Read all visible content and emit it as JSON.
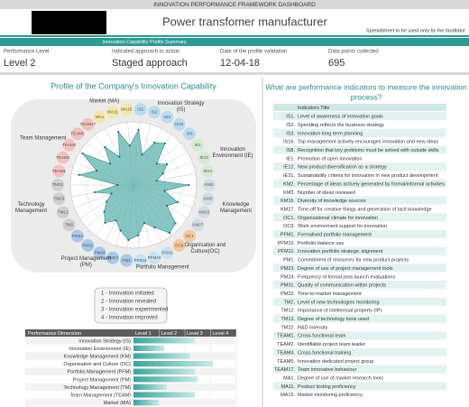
{
  "header": {
    "title": "INNOVATION PERFORMANCE FRAMEWORK DASHBOARD",
    "company": "Power transfomer manufacturer",
    "note": "Spreadsheet to be used only by the facilitator",
    "summary_title": "Innovation Capability Profile Summary"
  },
  "summary": [
    {
      "label": "Performance Level",
      "value": "Level 2"
    },
    {
      "label": "Indicated approach to action",
      "value": "Staged approach"
    },
    {
      "label": "Date of the profile validation",
      "value": "12-04-18"
    },
    {
      "label": "Data points collected",
      "value": "695"
    }
  ],
  "chart_data": [
    {
      "type": "radar",
      "title": "Profile of the Company's Innovation Capability",
      "color": "#5fb3ad",
      "rlim": [
        0,
        4
      ],
      "rticks": [
        {
          "value": 1,
          "label": "1 - Innovation initiated"
        },
        {
          "value": 2,
          "label": "2 - Innovation revealed"
        },
        {
          "value": 3,
          "label": "3 - Innovation experimented"
        },
        {
          "value": 4,
          "label": "4 - Innovation improved"
        }
      ],
      "groups": [
        {
          "name": "Innovation Strategy (IS)",
          "color": "#b9dcef",
          "categories": [
            "IS1",
            "IS2",
            "IS3",
            "IS16",
            "IS8"
          ],
          "values": [
            3.5,
            2,
            3,
            3.3,
            2
          ]
        },
        {
          "name": "Innovation Environment (IE)",
          "color": "#d6ead0",
          "categories": [
            "IE1",
            "IE12",
            "IE21"
          ],
          "values": [
            2.5,
            2,
            1.5
          ]
        },
        {
          "name": "Knowledge Management",
          "color": "#d3dde6",
          "categories": [
            "KM2",
            "KM3",
            "KM16",
            "KM27"
          ],
          "values": [
            3.5,
            2,
            3,
            2.5
          ]
        },
        {
          "name": "Organisation and Culture(OC)",
          "color": "#f7c89a",
          "categories": [
            "OC1",
            "OC9"
          ],
          "values": [
            3.6,
            3.8
          ]
        },
        {
          "name": "Portfolio Management",
          "color": "#c5e3f2",
          "categories": [
            "PFM1",
            "PFM10",
            "PFM11"
          ],
          "values": [
            3,
            2.5,
            3.2
          ]
        },
        {
          "name": "Project Management (PM)",
          "color": "#a9c9ea",
          "categories": [
            "PM1",
            "PM23",
            "PM24",
            "PM31",
            "PM32"
          ],
          "values": [
            3.5,
            3,
            2.5,
            3,
            2.5
          ]
        },
        {
          "name": "Technology Management",
          "color": "#d0d0d0",
          "categories": [
            "TM2",
            "TM12",
            "TM13",
            "TM22"
          ],
          "values": [
            2,
            1.5,
            2.5,
            1
          ]
        },
        {
          "name": "Team Management",
          "color": "#f4c0c0",
          "categories": [
            "TEAM1",
            "TEAM2",
            "TEAM4",
            "TEAM5",
            "TEAM17"
          ],
          "values": [
            3.5,
            2.5,
            3.8,
            2,
            3
          ]
        },
        {
          "name": "Market (MA)",
          "color": "#f6e7a6",
          "categories": [
            "MA1",
            "MA11",
            "MA15"
          ],
          "values": [
            2,
            3.5,
            2.5
          ]
        }
      ]
    },
    {
      "type": "bar",
      "orientation": "horizontal",
      "category_label": "Performance Dimension",
      "color": "#3aa39a",
      "categories": [
        "Innovation Strategy (IS)",
        "Innovation Environment (IE)",
        "Knowledge Management (KM)",
        "Organisation and Culture (OC)",
        "Portfolio Management (PFM)",
        "Project Management (PM)",
        "Technology Management (TM)",
        "Team Management (TEAM)",
        "Market (MA)"
      ],
      "values": [
        2.4,
        1.2,
        2.2,
        3.1,
        2.4,
        2.5,
        1.3,
        2.4,
        1.0
      ],
      "xlim": [
        0,
        4
      ],
      "xticks": [
        {
          "value": 1,
          "label": "Level 1"
        },
        {
          "value": 2,
          "label": "Level 2"
        },
        {
          "value": 3,
          "label": "Level 3"
        },
        {
          "value": 4,
          "label": "Level 4"
        }
      ]
    }
  ],
  "indicators": {
    "question": [
      "What are performance indicators to measure the innovation",
      "process?"
    ],
    "header": "Indicators Title",
    "rows": [
      {
        "code": "IS1.",
        "title": "Level of awareness of innovation goals"
      },
      {
        "code": "IS2.",
        "title": "Spending reflects the business strategy"
      },
      {
        "code": "IS3.",
        "title": "Innovation long term planning"
      },
      {
        "code": "IS16.",
        "title": "Top management actively encourages innovation and new ideas"
      },
      {
        "code": "IS8.",
        "title": "Recognition that key problems must be solved with outside skills"
      },
      {
        "code": "IE1.",
        "title": "Promotion of open innovation"
      },
      {
        "code": "IE12.",
        "title": "New product diversification as a strategy"
      },
      {
        "code": "IE21.",
        "title": "Sustainability criteria for innovation in new product development"
      },
      {
        "code": "KM2.",
        "title": "Percentage of ideas actively generated by formal/informal activities"
      },
      {
        "code": "KM3.",
        "title": "Number of ideas reviewed"
      },
      {
        "code": "KM16.",
        "title": "Diversity of knowledge sources"
      },
      {
        "code": "KM27.",
        "title": "Time-off for creative things and generation of tacit knowledge"
      },
      {
        "code": "OC1.",
        "title": "Organisational climate for innovation"
      },
      {
        "code": "OC9.",
        "title": "Work environment support for innovation"
      },
      {
        "code": "PFM1.",
        "title": "Formalised portfolio management"
      },
      {
        "code": "PFM10.",
        "title": "Portfolio balance use"
      },
      {
        "code": "PFM11.",
        "title": "Innovation portfolio strategic alignment"
      },
      {
        "code": "PM1.",
        "title": "Commitment of resources for new product projects"
      },
      {
        "code": "PM23.",
        "title": "Degree of use of project management tools"
      },
      {
        "code": "PM24.",
        "title": "Frequency of formal post-launch evaluations"
      },
      {
        "code": "PM31.",
        "title": "Quality of communication within projects"
      },
      {
        "code": "PM32.",
        "title": "Time-to-market management"
      },
      {
        "code": "TM2.",
        "title": "Level of new technologies monitoring"
      },
      {
        "code": "TM12.",
        "title": "Importance of intellectual property (IP)"
      },
      {
        "code": "TM13.",
        "title": "Degree of technology tools used"
      },
      {
        "code": "TM22.",
        "title": "R&D intensity"
      },
      {
        "code": "TEAM1.",
        "title": "Cross-functional team"
      },
      {
        "code": "TEAM2.",
        "title": "Identifiable project team leader"
      },
      {
        "code": "TEAM4.",
        "title": "Cross-functional training"
      },
      {
        "code": "TEAM5.",
        "title": "Innovation dedicated project group"
      },
      {
        "code": "TEAM17.",
        "title": "Team innovative behaviour"
      },
      {
        "code": "MA1.",
        "title": "Degree of use of market research tools"
      },
      {
        "code": "MA11.",
        "title": "Product testing proficiency"
      },
      {
        "code": "MA15.",
        "title": "Market monitoring proficiency"
      }
    ]
  }
}
